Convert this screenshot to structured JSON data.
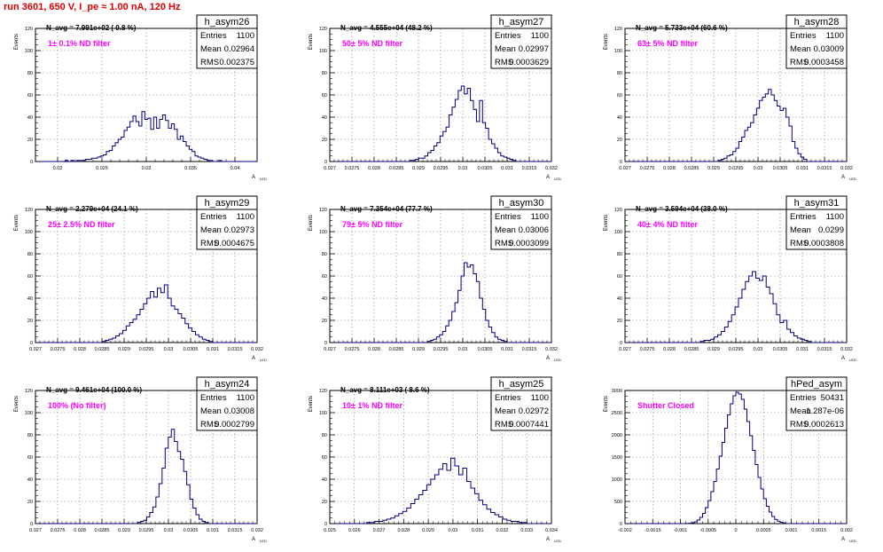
{
  "page": {
    "title": "run 3601,   650 V, I_pe ≈ 1.00 nA, 120 Hz"
  },
  "colors": {
    "title": "#e00000",
    "histogram": "#000080",
    "annotation": "#ff00ff",
    "grid": "#7a7a7a"
  },
  "chart_data": [
    {
      "type": "histogram",
      "name": "h_asym26",
      "ylabel": "Events",
      "xlabel": "",
      "xlim": [
        0.0175,
        0.0425
      ],
      "ylim": [
        0,
        120
      ],
      "xticks": [
        0.02,
        0.025,
        0.03,
        0.035,
        0.04
      ],
      "xtick_labels": [
        "0.02",
        "0.025",
        "0.03",
        "0.035",
        "0.04"
      ],
      "yticks": [
        0,
        20,
        40,
        60,
        80,
        100,
        120
      ],
      "grid": true,
      "navg": "N_avg = 7.991e+02 ( 0.8 %)",
      "filter": "1± 0.1% ND filter",
      "stats": {
        "Entries": "1100",
        "Mean": "0.02964",
        "RMS": "0.002375"
      },
      "bin_range": [
        0.0205,
        0.0385
      ],
      "values": [
        0,
        1,
        0,
        1,
        0,
        1,
        1,
        1,
        2,
        2,
        3,
        3,
        4,
        5,
        6,
        9,
        10,
        14,
        17,
        20,
        22,
        28,
        31,
        36,
        41,
        36,
        32,
        45,
        38,
        39,
        29,
        40,
        30,
        38,
        42,
        37,
        30,
        34,
        29,
        20,
        23,
        18,
        14,
        11,
        9,
        5,
        4,
        3,
        2,
        1,
        1,
        0,
        0,
        1
      ]
    },
    {
      "type": "histogram",
      "name": "h_asym27",
      "ylabel": "Events",
      "xlabel": "",
      "xlim": [
        0.027,
        0.032
      ],
      "ylim": [
        0,
        120
      ],
      "xticks": [
        0.027,
        0.0275,
        0.028,
        0.0285,
        0.029,
        0.0295,
        0.03,
        0.0305,
        0.031,
        0.0315,
        0.032
      ],
      "xtick_labels": [
        "0.027",
        "0.0275",
        "0.028",
        "0.0285",
        "0.029",
        "0.0295",
        "0.03",
        "0.0305",
        "0.031",
        "0.0315",
        "0.032"
      ],
      "yticks": [
        0,
        20,
        40,
        60,
        80,
        100,
        120
      ],
      "grid": true,
      "navg": "N_avg = 4.555e+04 (48.2 %)",
      "filter": "50± 5% ND filter",
      "stats": {
        "Entries": "1100",
        "Mean": "0.02997",
        "RMS": "0.0003629"
      },
      "bin_range": [
        0.0288,
        0.0312
      ],
      "values": [
        1,
        1,
        2,
        3,
        3,
        5,
        8,
        10,
        14,
        17,
        23,
        27,
        31,
        42,
        49,
        56,
        64,
        68,
        61,
        66,
        55,
        47,
        36,
        55,
        35,
        30,
        20,
        16,
        12,
        8,
        5,
        4,
        3,
        2,
        1
      ]
    },
    {
      "type": "histogram",
      "name": "h_asym28",
      "ylabel": "Events",
      "xlabel": "",
      "xlim": [
        0.027,
        0.032
      ],
      "ylim": [
        0,
        120
      ],
      "xticks": [
        0.027,
        0.0275,
        0.028,
        0.0285,
        0.029,
        0.0295,
        0.03,
        0.0305,
        0.031,
        0.0315,
        0.032
      ],
      "xtick_labels": [
        "0.027",
        "0.0275",
        "0.028",
        "0.0285",
        "0.029",
        "0.0295",
        "0.03",
        "0.0305",
        "0.031",
        "0.0315",
        "0.032"
      ],
      "yticks": [
        0,
        20,
        40,
        60,
        80,
        100,
        120
      ],
      "grid": true,
      "navg": "N_avg = 5.733e+04 (60.6 %)",
      "filter": "63± 5% ND filter",
      "stats": {
        "Entries": "1100",
        "Mean": "0.03009",
        "RMS": "0.0003458"
      },
      "bin_range": [
        0.0291,
        0.0311
      ],
      "values": [
        1,
        2,
        3,
        5,
        6,
        9,
        12,
        18,
        22,
        28,
        31,
        35,
        42,
        48,
        55,
        58,
        61,
        65,
        60,
        55,
        50,
        46,
        48,
        40,
        32,
        18,
        12,
        7,
        4,
        2
      ]
    },
    {
      "type": "histogram",
      "name": "h_asym29",
      "ylabel": "Events",
      "xlabel": "",
      "xlim": [
        0.027,
        0.032
      ],
      "ylim": [
        0,
        120
      ],
      "xticks": [
        0.027,
        0.0275,
        0.028,
        0.0285,
        0.029,
        0.0295,
        0.03,
        0.0305,
        0.031,
        0.0315,
        0.032
      ],
      "xtick_labels": [
        "0.027",
        "0.0275",
        "0.028",
        "0.0285",
        "0.029",
        "0.0295",
        "0.03",
        "0.0305",
        "0.031",
        "0.0315",
        "0.032"
      ],
      "yticks": [
        0,
        20,
        40,
        60,
        80,
        100,
        120
      ],
      "grid": true,
      "navg": "N_avg = 2.279e+04 (24.1 %)",
      "filter": "25± 2.5% ND filter",
      "stats": {
        "Entries": "1100",
        "Mean": "0.02973",
        "RMS": "0.0004675"
      },
      "bin_range": [
        0.0285,
        0.031
      ],
      "values": [
        1,
        2,
        3,
        4,
        6,
        8,
        11,
        15,
        18,
        21,
        25,
        30,
        35,
        40,
        46,
        41,
        49,
        45,
        52,
        40,
        33,
        30,
        26,
        22,
        17,
        13,
        10,
        7,
        5,
        3,
        2,
        1
      ]
    },
    {
      "type": "histogram",
      "name": "h_asym30",
      "ylabel": "Events",
      "xlabel": "",
      "xlim": [
        0.027,
        0.032
      ],
      "ylim": [
        0,
        120
      ],
      "xticks": [
        0.027,
        0.0275,
        0.028,
        0.0285,
        0.029,
        0.0295,
        0.03,
        0.0305,
        0.031,
        0.0315,
        0.032
      ],
      "xtick_labels": [
        "0.027",
        "0.0275",
        "0.028",
        "0.0285",
        "0.029",
        "0.0295",
        "0.03",
        "0.0305",
        "0.031",
        "0.0315",
        "0.032"
      ],
      "yticks": [
        0,
        20,
        40,
        60,
        80,
        100,
        120
      ],
      "grid": true,
      "navg": "N_avg = 7.354e+04 (77.7 %)",
      "filter": "79± 5% ND filter",
      "stats": {
        "Entries": "1100",
        "Mean": "0.03006",
        "RMS": "0.0003099"
      },
      "bin_range": [
        0.0292,
        0.031
      ],
      "values": [
        1,
        2,
        3,
        5,
        7,
        10,
        15,
        20,
        28,
        36,
        47,
        60,
        72,
        68,
        70,
        62,
        55,
        40,
        30,
        20,
        14,
        9,
        5,
        3,
        2,
        1
      ]
    },
    {
      "type": "histogram",
      "name": "h_asym31",
      "ylabel": "Events",
      "xlabel": "",
      "xlim": [
        0.027,
        0.032
      ],
      "ylim": [
        0,
        120
      ],
      "xticks": [
        0.027,
        0.0275,
        0.028,
        0.0285,
        0.029,
        0.0295,
        0.03,
        0.0305,
        0.031,
        0.0315,
        0.032
      ],
      "xtick_labels": [
        "0.027",
        "0.0275",
        "0.028",
        "0.0285",
        "0.029",
        "0.0295",
        "0.03",
        "0.0305",
        "0.031",
        "0.0315",
        "0.032"
      ],
      "yticks": [
        0,
        20,
        40,
        60,
        80,
        100,
        120
      ],
      "grid": true,
      "navg": "N_avg = 3.594e+04 (38.0 %)",
      "filter": "40± 4% ND filter",
      "stats": {
        "Entries": "1100",
        "Mean": "0.0299",
        "RMS": "0.0003808"
      },
      "bin_range": [
        0.0287,
        0.0312
      ],
      "values": [
        1,
        2,
        2,
        3,
        5,
        7,
        10,
        14,
        19,
        25,
        32,
        40,
        48,
        55,
        60,
        64,
        58,
        56,
        60,
        50,
        44,
        35,
        25,
        18,
        20,
        12,
        9,
        6,
        4,
        3,
        2,
        1
      ]
    },
    {
      "type": "histogram",
      "name": "h_asym24",
      "ylabel": "Events",
      "xlabel": "",
      "xlim": [
        0.027,
        0.032
      ],
      "ylim": [
        0,
        120
      ],
      "xticks": [
        0.027,
        0.0275,
        0.028,
        0.0285,
        0.029,
        0.0295,
        0.03,
        0.0305,
        0.031,
        0.0315,
        0.032
      ],
      "xtick_labels": [
        "0.027",
        "0.0275",
        "0.028",
        "0.0285",
        "0.029",
        "0.0295",
        "0.03",
        "0.0305",
        "0.031",
        "0.0315",
        "0.032"
      ],
      "yticks": [
        0,
        20,
        40,
        60,
        80,
        100,
        120
      ],
      "grid": true,
      "navg": "N_avg = 9.461e+04 (100.0 %)",
      "filter": "100% (No filter)",
      "stats": {
        "Entries": "1100",
        "Mean": "0.03008",
        "RMS": "0.0002799"
      },
      "bin_range": [
        0.0293,
        0.0309
      ],
      "values": [
        1,
        2,
        3,
        6,
        10,
        15,
        24,
        36,
        50,
        68,
        78,
        85,
        74,
        65,
        58,
        47,
        35,
        22,
        14,
        8,
        4,
        2,
        1
      ]
    },
    {
      "type": "histogram",
      "name": "h_asym25",
      "ylabel": "Events",
      "xlabel": "",
      "xlim": [
        0.025,
        0.034
      ],
      "ylim": [
        0,
        120
      ],
      "xticks": [
        0.025,
        0.026,
        0.027,
        0.028,
        0.029,
        0.03,
        0.031,
        0.032,
        0.033,
        0.034
      ],
      "xtick_labels": [
        "0.025",
        "0.026",
        "0.027",
        "0.028",
        "0.029",
        "0.03",
        "0.031",
        "0.032",
        "0.033",
        "0.034"
      ],
      "yticks": [
        0,
        20,
        40,
        60,
        80,
        100,
        120
      ],
      "grid": true,
      "navg": "N_avg = 8.111e+03 ( 8.6 %)",
      "filter": "10± 1% ND filter",
      "stats": {
        "Entries": "1100",
        "Mean": "0.02972",
        "RMS": "0.0007441"
      },
      "bin_range": [
        0.0265,
        0.033
      ],
      "values": [
        1,
        1,
        2,
        2,
        3,
        4,
        5,
        7,
        9,
        11,
        14,
        18,
        22,
        26,
        30,
        35,
        40,
        44,
        49,
        54,
        48,
        59,
        52,
        44,
        50,
        38,
        32,
        27,
        21,
        17,
        13,
        10,
        8,
        6,
        4,
        3,
        2,
        2,
        1,
        1
      ]
    },
    {
      "type": "histogram",
      "name": "hPed_asym",
      "ylabel": "Events",
      "xlabel": "",
      "xlim": [
        -0.002,
        0.002
      ],
      "ylim": [
        0,
        3000
      ],
      "xticks": [
        -0.002,
        -0.0015,
        -0.001,
        -0.0005,
        0,
        0.0005,
        0.001,
        0.0015,
        0.002
      ],
      "xtick_labels": [
        "-0.002",
        "-0.0015",
        "-0.001",
        "-0.0005",
        "0",
        "0.0005",
        "0.001",
        "0.0015",
        "0.002"
      ],
      "yticks": [
        0,
        500,
        1000,
        1500,
        2000,
        2500,
        3000
      ],
      "grid": true,
      "navg": "",
      "filter": "Shutter Closed",
      "stats": {
        "Entries": "50431",
        "Mean": "1.287e-06",
        "RMS": "0.0002613"
      },
      "bin_range": [
        -0.0009,
        0.0009
      ],
      "values": [
        3,
        8,
        20,
        40,
        80,
        140,
        230,
        360,
        520,
        720,
        950,
        1230,
        1520,
        1830,
        2150,
        2450,
        2700,
        2880,
        2960,
        2920,
        2800,
        2580,
        2300,
        1980,
        1650,
        1330,
        1040,
        780,
        560,
        390,
        260,
        160,
        95,
        55,
        30,
        15
      ]
    }
  ]
}
